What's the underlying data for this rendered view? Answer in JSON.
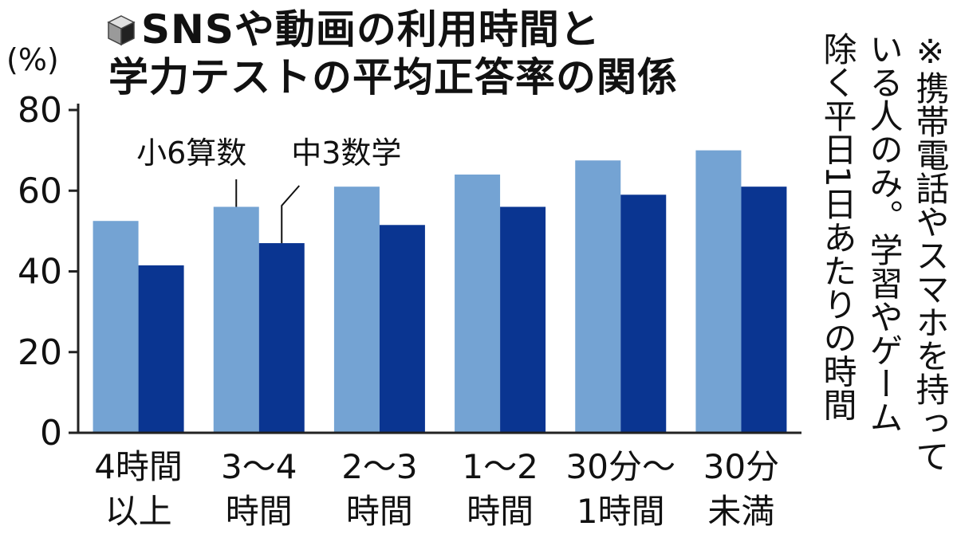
{
  "title": {
    "line1": "SNSや動画の利用時間と",
    "line2": "学力テストの平均正答率の関係",
    "icon": "cube-icon"
  },
  "unit_label": "(%)",
  "note": {
    "lines": [
      "※携帯電話やスマホを持って",
      "いる人のみ。学習やゲーム",
      "除く平日1日あたりの時間"
    ]
  },
  "colors": {
    "series_light": "#74a3d3",
    "series_dark": "#0a3591",
    "axis": "#222222",
    "background": "#ffffff"
  },
  "chart_data": {
    "type": "bar",
    "categories": [
      [
        "4時間",
        "以上"
      ],
      [
        "3〜4",
        "時間"
      ],
      [
        "2〜3",
        "時間"
      ],
      [
        "1〜2",
        "時間"
      ],
      [
        "30分〜",
        "1時間"
      ],
      [
        "30分",
        "未満"
      ]
    ],
    "series": [
      {
        "name": "小6算数",
        "values": [
          52.5,
          56,
          61,
          64,
          67.5,
          70
        ]
      },
      {
        "name": "中3数学",
        "values": [
          41.5,
          47,
          51.5,
          56,
          59,
          61
        ]
      }
    ],
    "title": "SNSや動画の利用時間と学力テストの平均正答率の関係",
    "ylabel": "(%)",
    "ylim": [
      0,
      80
    ],
    "yticks": [
      0,
      20,
      40,
      60,
      80
    ],
    "grid": false,
    "legend": "callout labels above second group"
  }
}
